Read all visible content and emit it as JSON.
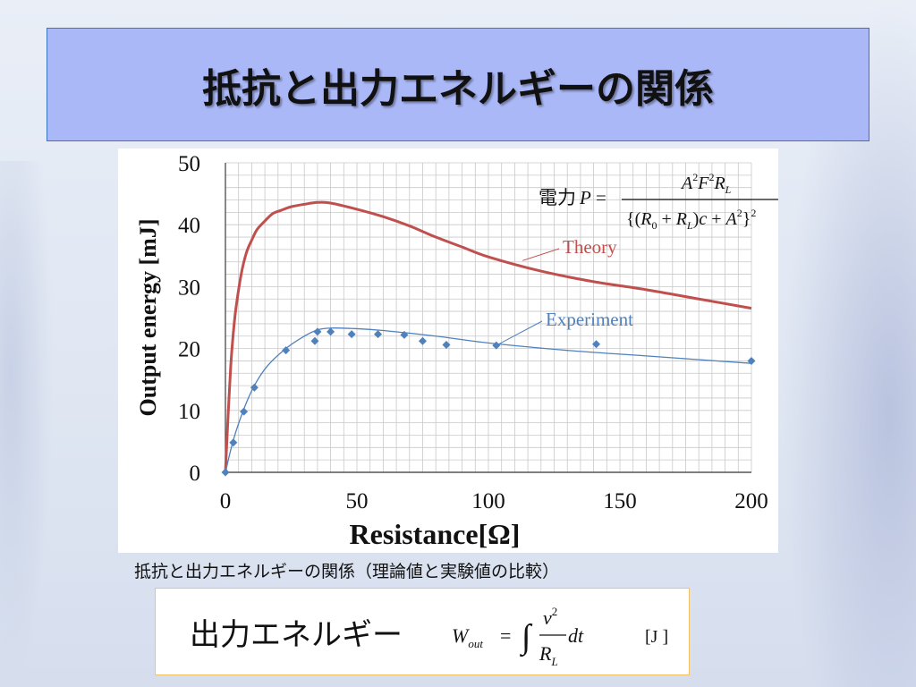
{
  "slide": {
    "title": "抵抗と出力エネルギーの関係",
    "caption": "抵抗と出力エネルギーの関係（理論値と実験値の比較）",
    "energy_label": "出力エネルギー",
    "power_label": "電力",
    "unit_label": "[J ]"
  },
  "colors": {
    "title_bg": "#aab8f7",
    "theory": "#c0504d",
    "experiment": "#4f81bd",
    "box_border": "#f1c26a"
  },
  "chart_data": {
    "type": "scatter",
    "xlabel": "Resistance[Ω]",
    "ylabel": "Output energy [mJ]",
    "xlim": [
      0,
      200
    ],
    "ylim": [
      0,
      50
    ],
    "xticks": [
      0,
      50,
      100,
      150,
      200
    ],
    "yticks": [
      0,
      10,
      20,
      30,
      40,
      50
    ],
    "grid": true,
    "series": [
      {
        "name": "Theory",
        "kind": "line",
        "x": [
          0,
          1,
          2,
          3,
          4,
          6,
          8,
          10,
          12,
          15,
          18,
          21,
          25,
          30,
          35,
          40,
          50,
          60,
          70,
          80,
          90,
          100,
          120,
          140,
          160,
          180,
          200
        ],
        "y": [
          0,
          9,
          17,
          22.5,
          26.5,
          32,
          35.5,
          37.5,
          39.2,
          40.6,
          41.8,
          42.3,
          42.9,
          43.3,
          43.6,
          43.5,
          42.5,
          41.3,
          39.8,
          38,
          36.4,
          34.8,
          32.5,
          30.8,
          29.5,
          28,
          26.5
        ]
      },
      {
        "name": "Experiment",
        "kind": "scatter+fit",
        "x": [
          0,
          3,
          7,
          11,
          23,
          34,
          35,
          40,
          48,
          58,
          68,
          75,
          84,
          103,
          141,
          200
        ],
        "y": [
          0,
          4.8,
          9.8,
          13.7,
          19.7,
          21.2,
          22.7,
          22.7,
          22.3,
          22.3,
          22.2,
          21.2,
          20.6,
          20.5,
          20.7,
          18
        ],
        "fit_x": [
          0,
          3,
          7,
          11,
          16,
          23,
          30,
          35,
          40,
          50,
          60,
          80,
          100,
          130,
          160,
          200
        ],
        "fit_y": [
          0,
          5.2,
          10.2,
          14,
          17.2,
          20,
          22,
          23,
          23.3,
          23.2,
          22.9,
          22,
          20.9,
          19.7,
          18.8,
          17.6
        ]
      }
    ],
    "annotations": [
      "Theory",
      "Experiment"
    ]
  }
}
